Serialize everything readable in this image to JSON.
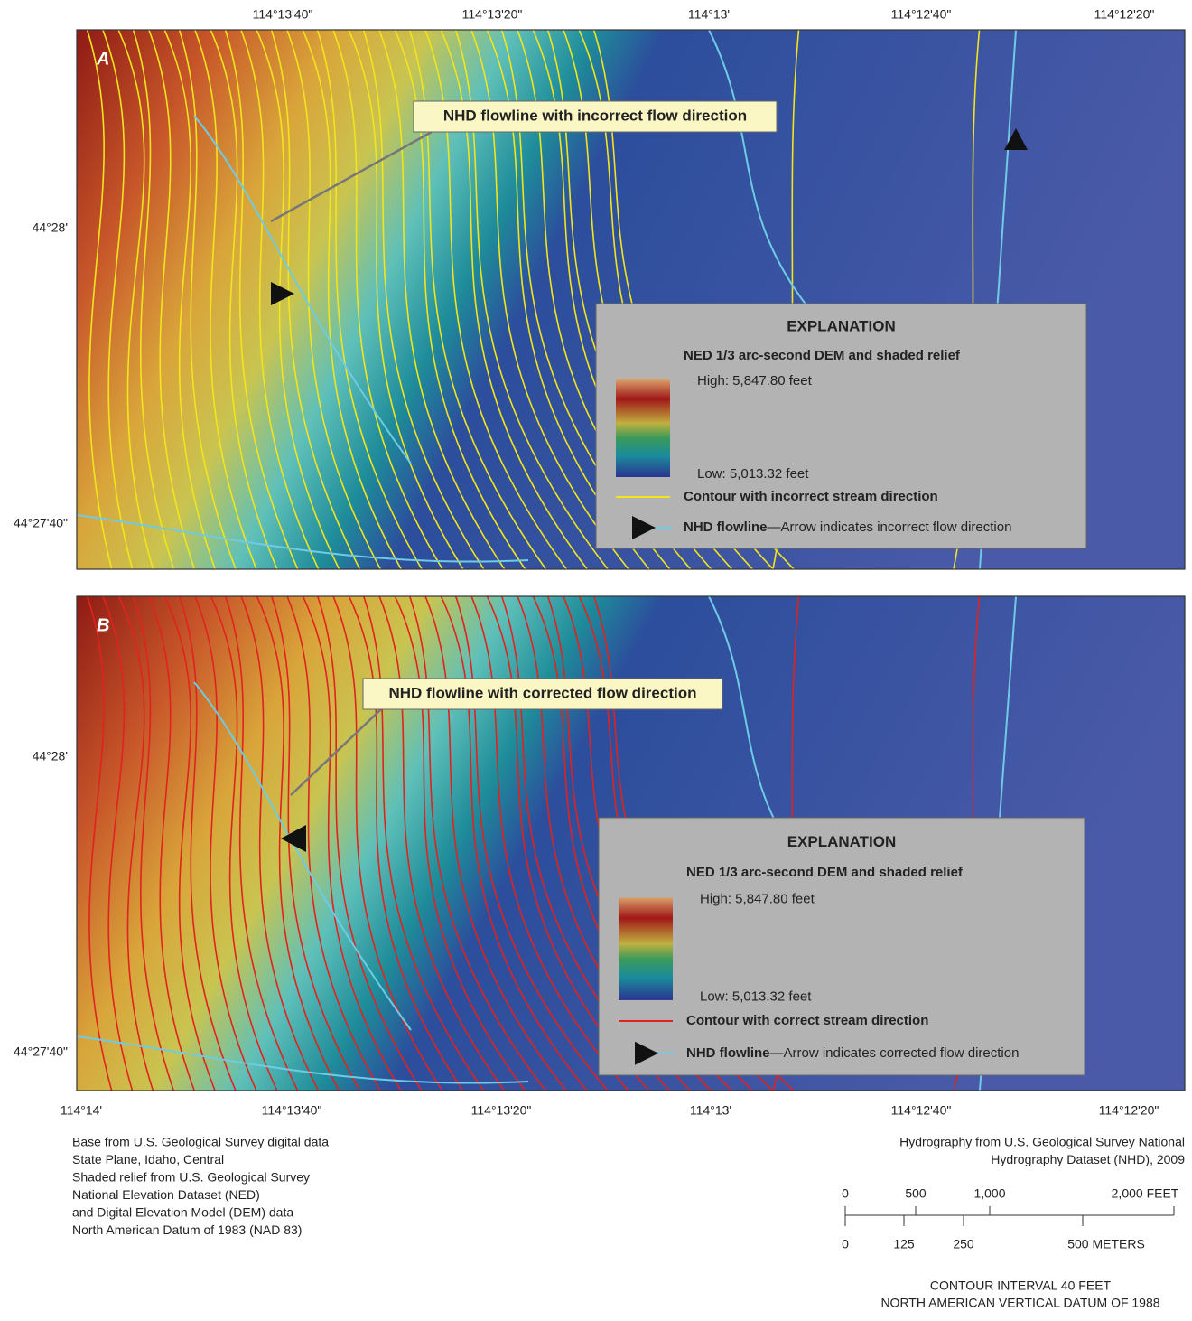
{
  "panels": [
    {
      "label": "A",
      "callout": "NHD flowline with incorrect flow direction",
      "explanation": {
        "title": "EXPLANATION",
        "dem_title": "NED 1/3 arc-second DEM and shaded relief",
        "high": "High: 5,847.80 feet",
        "low": "Low: 5,013.32 feet",
        "contour": "Contour with incorrect stream direction",
        "flowline_bold": "NHD flowline",
        "flowline_rest": "—Arrow indicates incorrect flow direction"
      }
    },
    {
      "label": "B",
      "callout": "NHD flowline with corrected flow direction",
      "explanation": {
        "title": "EXPLANATION",
        "dem_title": "NED 1/3 arc-second DEM and shaded relief",
        "high": "High: 5,847.80 feet",
        "low": "Low: 5,013.32 feet",
        "contour": "Contour with correct stream direction",
        "flowline_bold": "NHD flowline",
        "flowline_rest": "—Arrow indicates corrected flow direction"
      }
    }
  ],
  "top_longitude_labels": [
    "114°13'40\"",
    "114°13'20\"",
    "114°13'",
    "114°12'40\"",
    "114°12'20\""
  ],
  "bottom_longitude_labels": [
    "114°14'",
    "114°13'40\"",
    "114°13'20\"",
    "114°13'",
    "114°12'40\"",
    "114°12'20\""
  ],
  "latitude_labels": [
    "44°28'",
    "44°27'40\""
  ],
  "source_left": [
    "Base from U.S. Geological Survey digital data",
    "State Plane, Idaho, Central",
    "Shaded relief from U.S. Geological Survey",
    "National Elevation Dataset (NED)",
    "and Digital Elevation Model (DEM) data",
    "North American Datum of 1983 (NAD 83)"
  ],
  "source_right": [
    "Hydrography from U.S. Geological Survey National",
    "Hydrography Dataset (NHD), 2009"
  ],
  "scale_feet": [
    "0",
    "500",
    "1,000",
    "2,000 FEET"
  ],
  "scale_meters": [
    "0",
    "125",
    "250",
    "500 METERS"
  ],
  "contour_note": [
    "CONTOUR INTERVAL 40 FEET",
    "NORTH AMERICAN VERTICAL DATUM OF 1988"
  ]
}
